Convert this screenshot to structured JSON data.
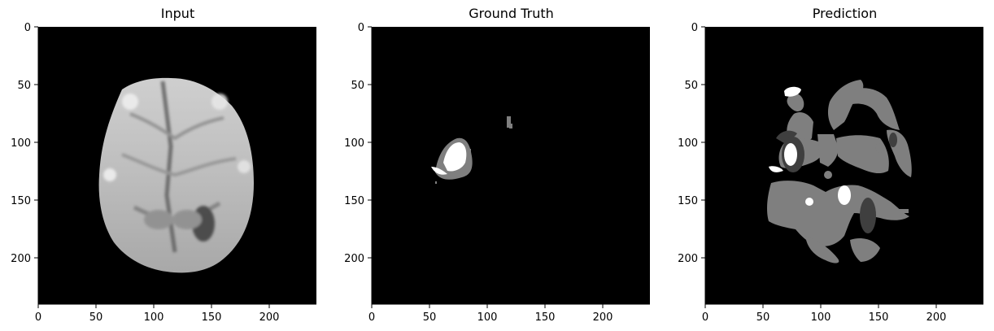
{
  "figure": {
    "panels": [
      {
        "title": "Input",
        "kind": "mri-input"
      },
      {
        "title": "Ground Truth",
        "kind": "ground-truth-mask"
      },
      {
        "title": "Prediction",
        "kind": "prediction-mask"
      }
    ],
    "axes": {
      "x_ticks": [
        "0",
        "50",
        "100",
        "150",
        "200"
      ],
      "y_ticks": [
        "0",
        "50",
        "100",
        "150",
        "200"
      ],
      "x_tick_values": [
        0,
        50,
        100,
        150,
        200
      ],
      "y_tick_values": [
        0,
        50,
        100,
        150,
        200
      ],
      "xlim": [
        0,
        240
      ],
      "ylim": [
        240,
        0
      ]
    },
    "colors": {
      "background": "#000000",
      "axis": "#000000",
      "gray_class": "#7f7f7f",
      "dark_class": "#3f3f3f",
      "white_class": "#ffffff"
    }
  }
}
